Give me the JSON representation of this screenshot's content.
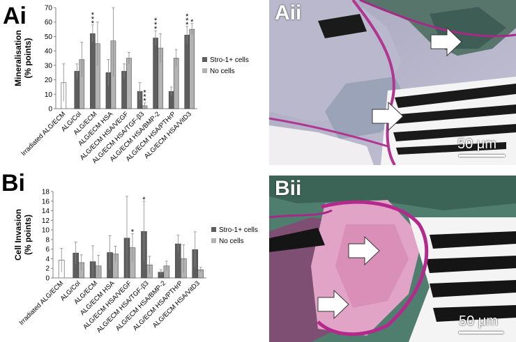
{
  "colors": {
    "stro": "#5e5e5e",
    "nocells": "#b3b3b3",
    "irradiated": "#ffffff",
    "axis": "#808080"
  },
  "panels": {
    "ai": "Ai",
    "aii": "Aii",
    "bi": "Bi",
    "bii": "Bii",
    "scale_aii": "50 μm",
    "scale_bii": "50 μm"
  },
  "chart_data": [
    {
      "type": "bar",
      "ylabel": "Mineralisation\n(% points)",
      "ylim": [
        0,
        70
      ],
      "yticks": [
        0,
        10,
        20,
        30,
        40,
        50,
        60,
        70
      ],
      "categories": [
        "Irradiated ALG/ECM",
        "ALG/Col",
        "ALG/ECM",
        "ALG/ECM HSA",
        "ALG/ECM HSA/VEGF",
        "ALG/ECM HSA/TGF-β3",
        "ALG/ECM HSA/BMP-2",
        "ALG/ECM HSA/PTHrP",
        "ALG/ECM HSA/VitD3"
      ],
      "irradiated": {
        "value": 18,
        "err": 13
      },
      "series": [
        {
          "name": "Stro-1+ cells",
          "values": [
            null,
            26,
            52,
            25,
            26,
            12,
            49,
            12,
            51
          ],
          "errors": [
            null,
            5,
            6,
            9,
            5,
            6,
            5,
            3,
            6
          ]
        },
        {
          "name": "No cells",
          "values": [
            null,
            34,
            45,
            47,
            35,
            2,
            42,
            35,
            55
          ],
          "errors": [
            null,
            12,
            15,
            25,
            4,
            2,
            10,
            6,
            4
          ]
        }
      ],
      "annotations": [
        {
          "category": 2,
          "series": 0,
          "text": "***"
        },
        {
          "category": 5,
          "series": 1,
          "text": "***"
        },
        {
          "category": 6,
          "series": 0,
          "text": "***"
        },
        {
          "category": 8,
          "series": 0,
          "text": "***"
        },
        {
          "category": 8,
          "series": 1,
          "text": "*"
        }
      ],
      "legend": "right"
    },
    {
      "type": "bar",
      "ylabel": "Cell Invasion\n(% points)",
      "ylim": [
        0,
        18
      ],
      "yticks": [
        0,
        2,
        4,
        6,
        8,
        10,
        12,
        14,
        16,
        18
      ],
      "categories": [
        "Irradiated ALG/ECM",
        "ALG/Col",
        "ALG/ECM",
        "ALG/ECM HSA",
        "ALG/ECM HSA/VEGF",
        "ALG/ECM HSA/TGF-β3",
        "ALG/ECM HSA/BMP-2",
        "ALG/ECM HSA/PTHrP",
        "ALG/ECM HSA/VitD3"
      ],
      "irradiated": {
        "value": 3.7,
        "err": 2.5
      },
      "series": [
        {
          "name": "Stro-1+ cells",
          "values": [
            null,
            5.2,
            3.4,
            5.3,
            8.3,
            9.7,
            1.2,
            7.1,
            5.9
          ],
          "errors": [
            null,
            2.3,
            3.3,
            3.5,
            8.7,
            6.3,
            0.5,
            1.8,
            3.7
          ]
        },
        {
          "name": "No cells",
          "values": [
            null,
            3.2,
            2.5,
            5.0,
            6.3,
            2.7,
            2.5,
            4.0,
            1.7
          ],
          "errors": [
            null,
            1.6,
            2.2,
            1.6,
            2.9,
            1.8,
            1.0,
            2.9,
            0.5
          ]
        }
      ],
      "annotations": [
        {
          "category": 4,
          "series": 1,
          "text": "*"
        },
        {
          "category": 5,
          "series": 0,
          "text": "*"
        }
      ],
      "legend": "right"
    }
  ]
}
